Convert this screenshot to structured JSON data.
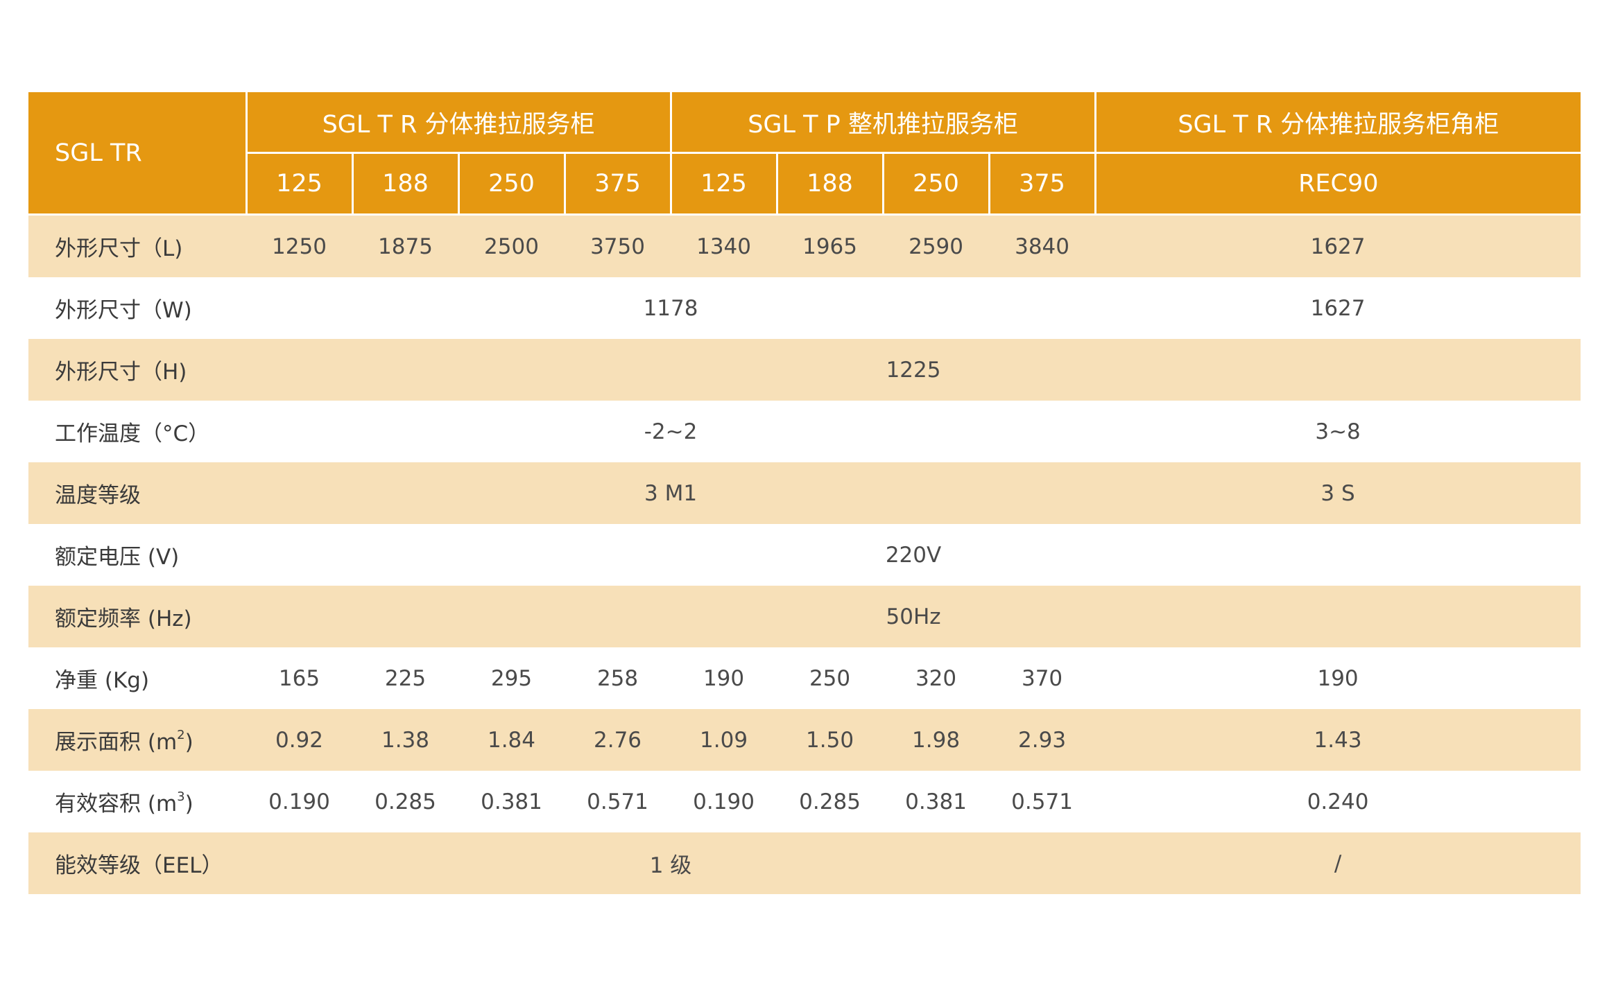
{
  "header": {
    "corner_label": "SGL TR",
    "groups": [
      "SGL T R 分体推拉服务柜",
      "SGL T P 整机推拉服务柜",
      "SGL T R 分体推拉服务柜角柜"
    ],
    "models": [
      "125",
      "188",
      "250",
      "375",
      "125",
      "188",
      "250",
      "375",
      "REC90"
    ]
  },
  "rows": {
    "length": {
      "label": "外形尺寸（L)",
      "values": [
        "1250",
        "1875",
        "2500",
        "3750",
        "1340",
        "1965",
        "2590",
        "3840",
        "1627"
      ]
    },
    "width": {
      "label": "外形尺寸（W)",
      "main": "1178",
      "corner": "1627"
    },
    "height": {
      "label": "外形尺寸（H)",
      "all": "1225"
    },
    "temperature": {
      "label": "工作温度（°C）",
      "main": "-2~2",
      "corner": "3~8"
    },
    "temp_class": {
      "label": "温度等级",
      "main": "3 M1",
      "corner": "3 S"
    },
    "voltage": {
      "label": "额定电压 (V)",
      "all": "220V"
    },
    "frequency": {
      "label": "额定频率 (Hz)",
      "all": "50Hz"
    },
    "net_weight": {
      "label": "净重 (Kg)",
      "values": [
        "165",
        "225",
        "295",
        "258",
        "190",
        "250",
        "320",
        "370",
        "190"
      ]
    },
    "display_area": {
      "label": "展示面积 (m",
      "label_sup": "2",
      "label_end": ")",
      "values": [
        "0.92",
        "1.38",
        "1.84",
        "2.76",
        "1.09",
        "1.50",
        "1.98",
        "2.93",
        "1.43"
      ]
    },
    "volume": {
      "label": "有效容积 (m",
      "label_sup": "3",
      "label_end": ")",
      "values": [
        "0.190",
        "0.285",
        "0.381",
        "0.571",
        "0.190",
        "0.285",
        "0.381",
        "0.571",
        "0.240"
      ]
    },
    "energy_class": {
      "label": "能效等级（EEL）",
      "main": "1 级",
      "corner": "/"
    }
  }
}
